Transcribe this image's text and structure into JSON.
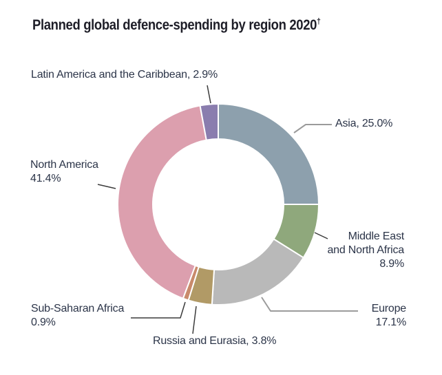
{
  "title": {
    "main": "Planned global defence-spending by region 2020",
    "sup": "†"
  },
  "chart_data": {
    "type": "pie",
    "subtype": "donut",
    "title": "Planned global defence-spending by region 2020†",
    "unit": "%",
    "start_angle": "12 o'clock",
    "direction": "clockwise",
    "categories": [
      "Asia",
      "Middle East and North Africa",
      "Europe",
      "Russia and Eurasia",
      "Sub-Saharan Africa",
      "North America",
      "Latin America and the Caribbean"
    ],
    "values": [
      25.0,
      8.9,
      17.1,
      3.8,
      0.9,
      41.4,
      2.9
    ],
    "colors": [
      "#8da0ad",
      "#8fa87c",
      "#b9b9b9",
      "#b19a66",
      "#c98a6b",
      "#dc9fae",
      "#8a7dae"
    ],
    "inner_radius_ratio": 0.65,
    "legend_position": "callout-labels",
    "grid": false
  },
  "callouts": {
    "latin_america": "Latin America and the Caribbean, 2.9%",
    "asia": "Asia, 25.0%",
    "mena_line1": "Middle East",
    "mena_line2": "and North Africa",
    "mena_line3": "8.9%",
    "europe_line1": "Europe",
    "europe_line2": "17.1%",
    "russia": "Russia and Eurasia, 3.8%",
    "subsaharan_line1": "Sub-Saharan Africa",
    "subsaharan_line2": "0.9%",
    "north_america_line1": "North America",
    "north_america_line2": "41.4%"
  },
  "style": {
    "background": "#ffffff",
    "title_color": "#1e1e28",
    "label_color": "#2b3448",
    "leader_dark": "#3a3a3a",
    "leader_gray": "#9b9b9b"
  }
}
